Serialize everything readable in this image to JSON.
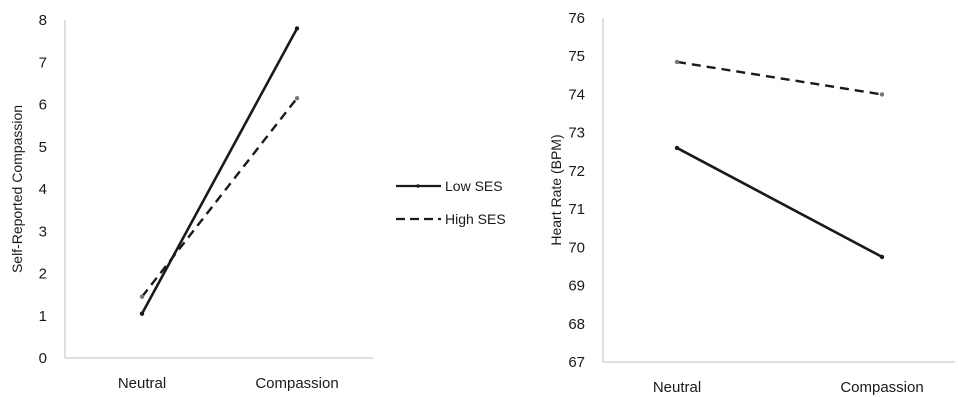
{
  "chart_data": [
    {
      "type": "line",
      "categories": [
        "Neutral",
        "Compassion"
      ],
      "ylabel": "Self-Reported Compassion",
      "ylim": [
        0,
        8
      ],
      "yticks": [
        0,
        1,
        2,
        3,
        4,
        5,
        6,
        7,
        8
      ],
      "series": [
        {
          "name": "Low SES",
          "style": "solid",
          "values": [
            1.05,
            7.8
          ]
        },
        {
          "name": "High SES",
          "style": "dashed",
          "values": [
            1.45,
            6.15
          ]
        }
      ]
    },
    {
      "type": "line",
      "categories": [
        "Neutral",
        "Compassion"
      ],
      "ylabel": "Heart Rate (BPM)",
      "ylim": [
        67,
        76
      ],
      "yticks": [
        67,
        68,
        69,
        70,
        71,
        72,
        73,
        74,
        75,
        76
      ],
      "series": [
        {
          "name": "Low SES",
          "style": "solid",
          "values": [
            72.6,
            69.75
          ]
        },
        {
          "name": "High SES",
          "style": "dashed",
          "values": [
            74.85,
            74.0
          ]
        }
      ]
    }
  ],
  "legend": {
    "placement": "center-between-panels",
    "items": [
      {
        "label": "Low SES",
        "style": "solid"
      },
      {
        "label": "High SES",
        "style": "dashed"
      }
    ]
  },
  "colors": {
    "line": "#1a1a1a",
    "axis": "#bfbfbf"
  }
}
